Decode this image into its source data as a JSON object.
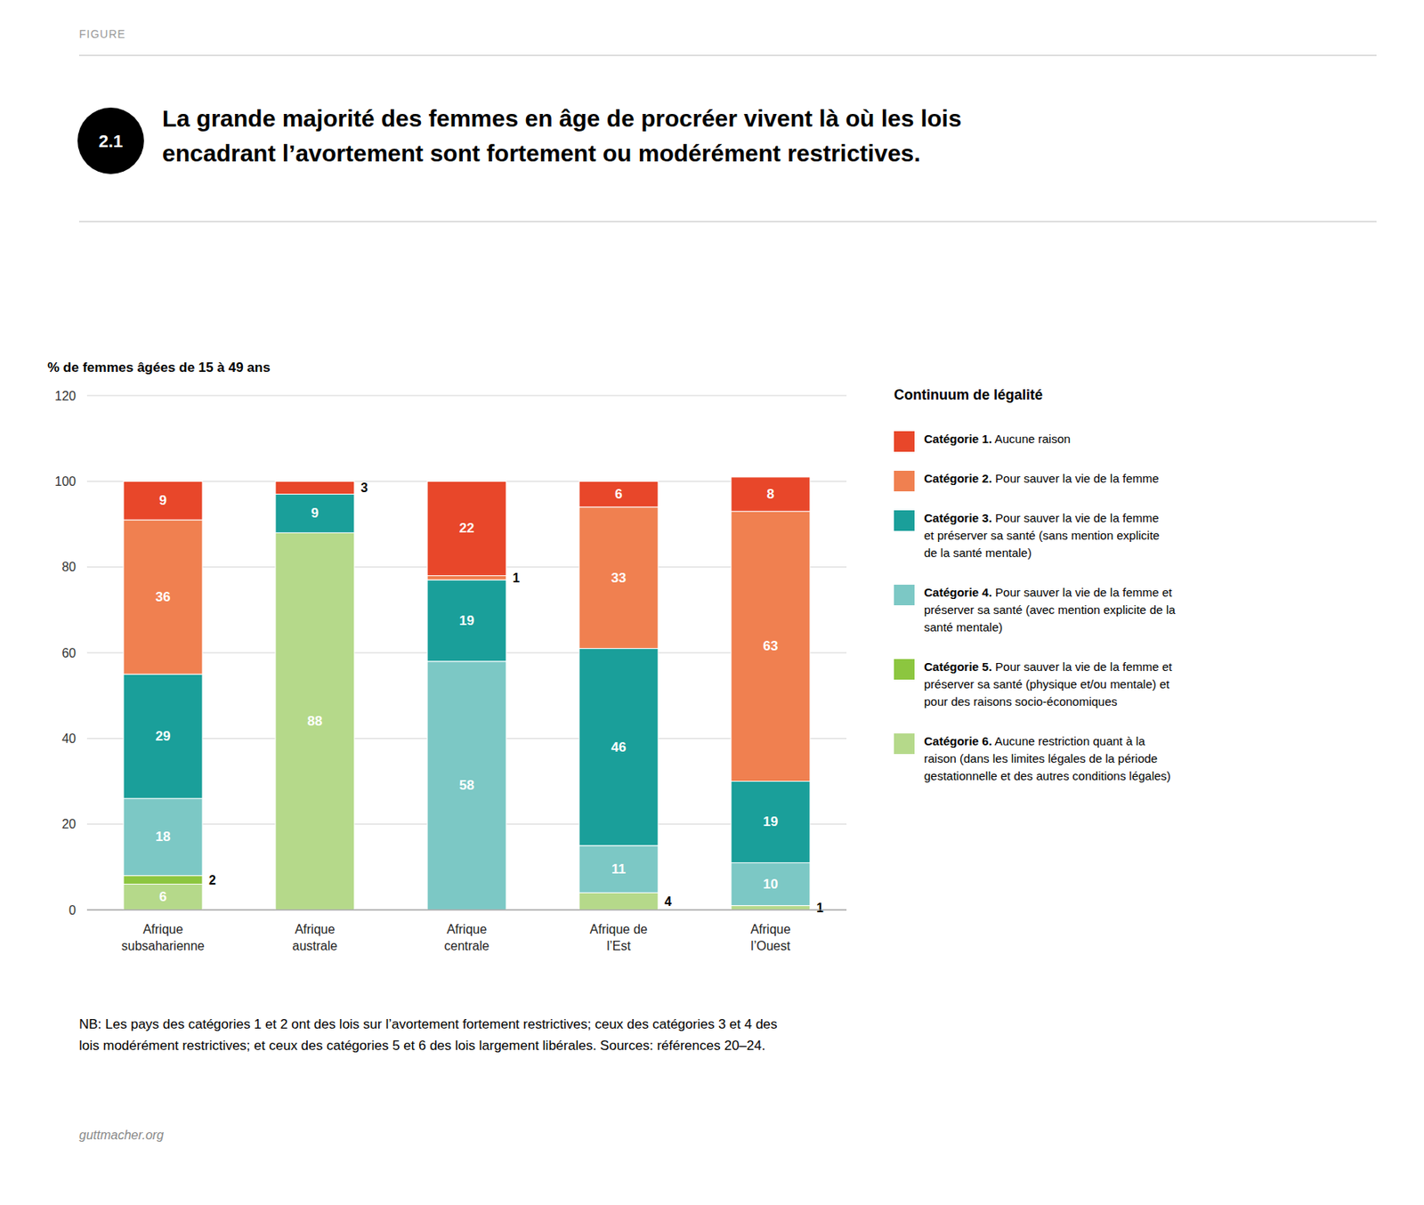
{
  "chart_data": {
    "type": "bar",
    "stacked": true,
    "data_labels": true,
    "grid": true,
    "title": "La grande majorité des femmes en âge de procréer vivent là où les lois\nencadrant l’avortement sont fortement ou modérément restrictives.",
    "ylabel": "% de femmes âgées de 15 à 49 ans",
    "annotations": [
      "FIGURE",
      "2.1",
      "Continuum de légalité",
      "NB: Les pays des catégories 1 et 2 ont des lois sur l’avortement fortement restrictives; ceux des catégories 3 et 4 des",
      "lois modérément restrictives; et ceux des catégories 5 et 6 des lois largement libérales. Sources: références 20–24.",
      "guttmacher.org"
    ],
    "categories": [
      "Afrique\nsubsaharienne",
      "Afrique\naustrale",
      "Afrique\ncentrale",
      "Afrique de\nl’Est",
      "Afrique\nl’Ouest"
    ],
    "series": [
      {
        "name": "Catégorie 6. Aucune restriction quant à la\nraison (dans les limites légales de la période\ngestationnelle et des autres conditions légales)",
        "color": "#B5D98A",
        "values": [
          6,
          88,
          0,
          4,
          1
        ]
      },
      {
        "name": "Catégorie 5. Pour sauver la vie de la femme et\npréserver sa santé (physique et/ou mentale) et\npour des raisons socio-économiques",
        "color": "#8CC63F",
        "values": [
          2,
          0,
          0,
          0,
          0
        ]
      },
      {
        "name": "Catégorie 4. Pour sauver la vie de la femme et\npréserver sa santé (avec mention explicite de la\nsanté mentale)",
        "color": "#7CC8C5",
        "values": [
          18,
          0,
          58,
          11,
          10
        ]
      },
      {
        "name": "Catégorie 3. Pour sauver la vie de la femme\net préserver sa santé (sans mention explicite\nde la santé mentale)",
        "color": "#1A9F9A",
        "values": [
          29,
          9,
          19,
          46,
          19
        ]
      },
      {
        "name": "Catégorie 2. Pour sauver la vie de la femme",
        "color": "#F08050",
        "values": [
          36,
          0,
          1,
          33,
          63
        ]
      },
      {
        "name": "Catégorie 1. Aucune raison",
        "color": "#E8472A",
        "values": [
          9,
          3,
          22,
          6,
          8
        ]
      }
    ],
    "ylim": [
      0,
      120
    ],
    "yticks": [
      0,
      20,
      40,
      60,
      80,
      100,
      120
    ]
  }
}
